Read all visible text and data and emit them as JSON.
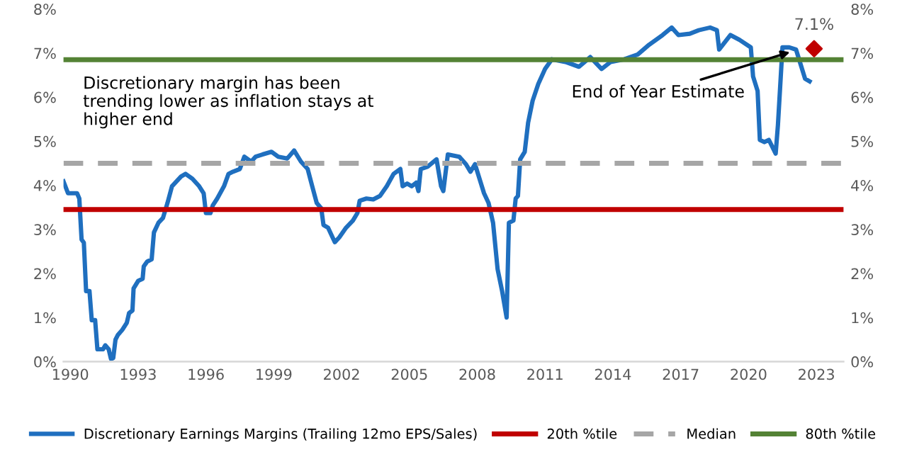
{
  "chart_data": {
    "type": "line",
    "x": [
      1989.7,
      1989.9,
      1990.3,
      1990.4,
      1990.5,
      1990.6,
      1990.7,
      1990.85,
      1990.95,
      1991.1,
      1991.2,
      1991.45,
      1991.55,
      1991.7,
      1991.8,
      1991.9,
      1992.0,
      1992.1,
      1992.3,
      1992.5,
      1992.6,
      1992.75,
      1992.8,
      1993.0,
      1993.2,
      1993.25,
      1993.4,
      1993.6,
      1993.7,
      1993.9,
      1994.1,
      1994.3,
      1994.5,
      1994.9,
      1995.1,
      1995.4,
      1995.7,
      1995.9,
      1996.0,
      1996.2,
      1996.3,
      1996.5,
      1996.8,
      1997.0,
      1997.2,
      1997.5,
      1997.7,
      1998.0,
      1998.2,
      1998.5,
      1998.9,
      1999.2,
      1999.6,
      1999.9,
      2000.2,
      2000.5,
      2000.7,
      2000.9,
      2001.1,
      2001.2,
      2001.4,
      2001.6,
      2001.7,
      2001.9,
      2002.2,
      2002.5,
      2002.7,
      2002.8,
      2003.1,
      2003.4,
      2003.7,
      2004.0,
      2004.3,
      2004.6,
      2004.7,
      2004.9,
      2005.1,
      2005.3,
      2005.4,
      2005.5,
      2005.8,
      2006.2,
      2006.4,
      2006.5,
      2006.7,
      2007.2,
      2007.5,
      2007.7,
      2007.9,
      2008.3,
      2008.5,
      2008.7,
      2008.9,
      2009.1,
      2009.3,
      2009.4,
      2009.6,
      2009.7,
      2009.8,
      2009.9,
      2010.1,
      2010.25,
      2010.45,
      2010.7,
      2011.0,
      2011.3,
      2011.9,
      2012.5,
      2013.0,
      2013.5,
      2013.9,
      2014.5,
      2015.1,
      2015.6,
      2016.2,
      2016.6,
      2016.9,
      2017.4,
      2017.8,
      2018.3,
      2018.6,
      2018.7,
      2019.2,
      2019.6,
      2020.1,
      2020.2,
      2020.4,
      2020.5,
      2020.7,
      2020.9,
      2021.2,
      2021.3,
      2021.5,
      2021.8,
      2022.1,
      2022.3,
      2022.5,
      2022.7
    ],
    "series": [
      {
        "name": "Discretionary Earnings Margins (Trailing 12mo EPS/Sales)",
        "color": "#1f6fbf",
        "values": [
          4.09,
          3.82,
          3.82,
          3.7,
          2.77,
          2.7,
          1.6,
          1.6,
          0.94,
          0.94,
          0.28,
          0.28,
          0.37,
          0.28,
          0.06,
          0.08,
          0.5,
          0.6,
          0.72,
          0.88,
          1.1,
          1.16,
          1.66,
          1.83,
          1.88,
          2.16,
          2.27,
          2.32,
          2.93,
          3.15,
          3.26,
          3.6,
          3.98,
          4.2,
          4.26,
          4.15,
          3.98,
          3.82,
          3.37,
          3.37,
          3.54,
          3.7,
          3.98,
          4.26,
          4.31,
          4.37,
          4.65,
          4.54,
          4.65,
          4.7,
          4.76,
          4.65,
          4.61,
          4.79,
          4.54,
          4.37,
          3.98,
          3.6,
          3.48,
          3.1,
          3.04,
          2.82,
          2.71,
          2.82,
          3.04,
          3.2,
          3.37,
          3.65,
          3.7,
          3.68,
          3.76,
          3.98,
          4.26,
          4.37,
          3.98,
          4.04,
          3.98,
          4.06,
          3.87,
          4.37,
          4.42,
          4.59,
          3.98,
          3.87,
          4.7,
          4.65,
          4.48,
          4.31,
          4.48,
          3.82,
          3.6,
          3.15,
          2.1,
          1.6,
          1.0,
          3.15,
          3.2,
          3.7,
          3.76,
          4.59,
          4.76,
          5.42,
          5.92,
          6.3,
          6.64,
          6.86,
          6.8,
          6.69,
          6.91,
          6.64,
          6.8,
          6.86,
          6.97,
          7.19,
          7.41,
          7.58,
          7.41,
          7.44,
          7.52,
          7.58,
          7.52,
          7.08,
          7.41,
          7.3,
          7.13,
          6.47,
          6.14,
          5.03,
          4.98,
          5.03,
          4.72,
          5.37,
          7.13,
          7.13,
          7.08,
          6.75,
          6.42,
          6.36
        ]
      },
      {
        "type": "scatter",
        "marker": "diamond",
        "color": "#c00000",
        "x": [
          2022.9
        ],
        "values": [
          7.1
        ],
        "value_labels": [
          "7.1%"
        ]
      }
    ],
    "ref_lines": [
      {
        "axis": "y",
        "value": 3.45,
        "label": "20th %tile",
        "color": "#c00000",
        "line_style": "solid"
      },
      {
        "axis": "y",
        "value": 4.5,
        "label": "Median",
        "color": "#a6a6a6",
        "line_style": "dashed"
      },
      {
        "axis": "y",
        "value": 6.85,
        "label": "80th %tile",
        "color": "#548235",
        "line_style": "solid"
      }
    ],
    "annotations": [
      "Discretionary margin has been\ntrending lower as inflation stays at\nhigher end",
      {
        "text": "End of Year Estimate",
        "x": 2022.0,
        "y": 7.05
      }
    ],
    "xlim": [
      1989.7,
      2024.2
    ],
    "xticks": [
      1990,
      1993,
      1996,
      1999,
      2002,
      2005,
      2008,
      2011,
      2014,
      2017,
      2020,
      2023
    ],
    "ylim": [
      0,
      8
    ],
    "yticks": [
      {
        "value": 0,
        "label": "0%"
      },
      {
        "value": 1,
        "label": "1%"
      },
      {
        "value": 2,
        "label": "2%"
      },
      {
        "value": 3,
        "label": "3%"
      },
      {
        "value": 4,
        "label": "4%"
      },
      {
        "value": 5,
        "label": "5%"
      },
      {
        "value": 6,
        "label": "6%"
      },
      {
        "value": 7,
        "label": "7%"
      },
      {
        "value": 8,
        "label": "8%"
      }
    ],
    "y2lim": [
      0,
      8
    ],
    "y2ticks": [
      {
        "value": 0,
        "label": "0%"
      },
      {
        "value": 1,
        "label": "1%"
      },
      {
        "value": 2,
        "label": "2%"
      },
      {
        "value": 3,
        "label": "3%"
      },
      {
        "value": 4,
        "label": "4%"
      },
      {
        "value": 5,
        "label": "5%"
      },
      {
        "value": 6,
        "label": "6%"
      },
      {
        "value": 7,
        "label": "7%"
      },
      {
        "value": 8,
        "label": "8%"
      }
    ],
    "grid": false,
    "legend": "bottom"
  }
}
